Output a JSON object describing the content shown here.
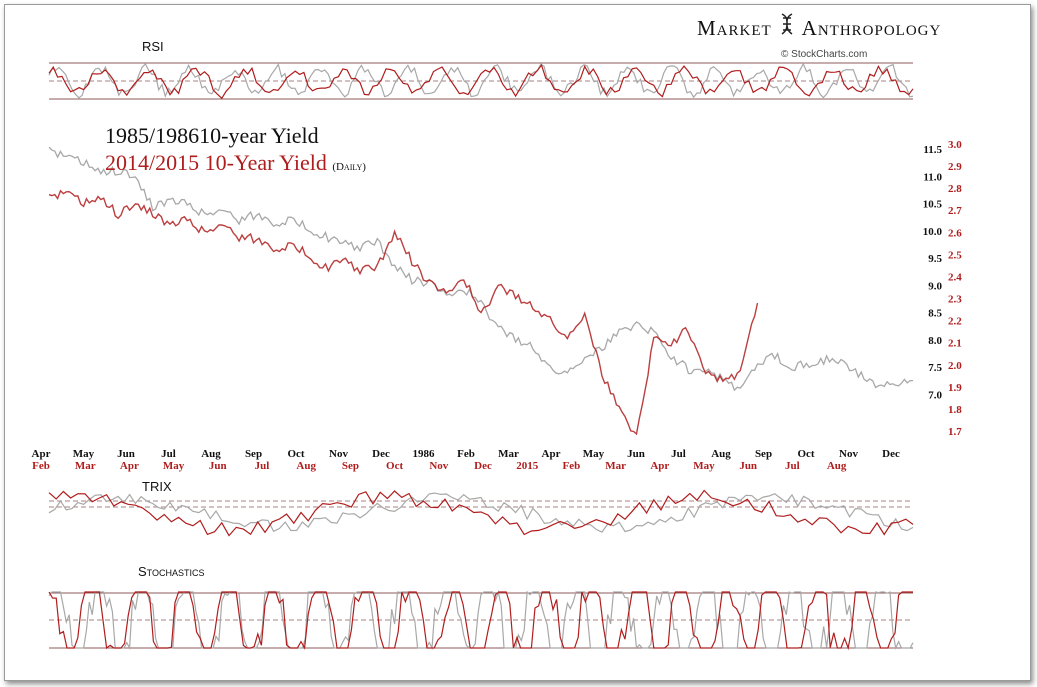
{
  "header": {
    "brand_left": "Market",
    "brand_right": "Anthropology",
    "credit": "© StockCharts.com"
  },
  "titles": {
    "series_1985": "1985/198610-year Yield",
    "series_2014_main": "2014/2015  10-Year Yield",
    "series_2014_note": "(Daily)"
  },
  "panels": {
    "rsi": "RSI",
    "trix": "TRIX",
    "stochastics": "Stochastics"
  },
  "colors": {
    "red": "#b01d1d",
    "gray": "#a8a8a8",
    "line": "#8c5a5a"
  },
  "chart_data": {
    "type": "line",
    "title": "",
    "axes": {
      "left_axis_1985": [
        11.5,
        11.0,
        10.5,
        10.0,
        9.5,
        9.0,
        8.5,
        8.0,
        7.5,
        7.0
      ],
      "right_axis_2014": [
        3.0,
        2.9,
        2.8,
        2.7,
        2.6,
        2.5,
        2.4,
        2.3,
        2.2,
        2.1,
        2.0,
        1.9,
        1.8,
        1.7
      ]
    },
    "x_labels_1985": [
      "Apr",
      "May",
      "Jun",
      "Jul",
      "Aug",
      "Sep",
      "Oct",
      "Nov",
      "Dec",
      "1986",
      "Feb",
      "Mar",
      "Apr",
      "May",
      "Jun",
      "Jul",
      "Aug",
      "Sep",
      "Oct",
      "Nov",
      "Dec"
    ],
    "x_labels_2014": [
      "Feb",
      "Mar",
      "Apr",
      "May",
      "Jun",
      "Jul",
      "Aug",
      "Sep",
      "Oct",
      "Nov",
      "Dec",
      "2015",
      "Feb",
      "Mar",
      "Apr",
      "May",
      "Jun",
      "Jul",
      "Aug"
    ],
    "series": [
      {
        "id": "yield_1985",
        "x": [
          0,
          0.02,
          0.04,
          0.06,
          0.08,
          0.1,
          0.12,
          0.14,
          0.16,
          0.18,
          0.2,
          0.22,
          0.24,
          0.26,
          0.28,
          0.3,
          0.32,
          0.34,
          0.36,
          0.38,
          0.4,
          0.42,
          0.44,
          0.46,
          0.48,
          0.5,
          0.52,
          0.54,
          0.56,
          0.58,
          0.6,
          0.62,
          0.64,
          0.66,
          0.68,
          0.7,
          0.72,
          0.74,
          0.76,
          0.78,
          0.8,
          0.82,
          0.84,
          0.86,
          0.88,
          0.9,
          0.92,
          0.94,
          0.96,
          0.98,
          1.0
        ],
        "values": [
          11.45,
          11.35,
          11.25,
          11.05,
          11.1,
          10.95,
          10.45,
          10.55,
          10.5,
          10.3,
          10.4,
          10.2,
          10.3,
          10.15,
          10.2,
          10.05,
          9.9,
          9.75,
          9.7,
          9.8,
          9.35,
          9.1,
          9.05,
          8.8,
          8.95,
          8.65,
          8.2,
          8.0,
          7.9,
          7.45,
          7.4,
          7.7,
          7.85,
          8.15,
          8.3,
          8.15,
          7.7,
          7.45,
          7.5,
          7.25,
          7.1,
          7.55,
          7.7,
          7.5,
          7.55,
          7.65,
          7.55,
          7.35,
          7.15,
          7.15,
          7.25
        ]
      },
      {
        "id": "yield_2014",
        "x": [
          0,
          0.02,
          0.04,
          0.06,
          0.08,
          0.1,
          0.12,
          0.14,
          0.16,
          0.18,
          0.2,
          0.22,
          0.24,
          0.26,
          0.28,
          0.3,
          0.32,
          0.34,
          0.36,
          0.38,
          0.4,
          0.42,
          0.44,
          0.46,
          0.48,
          0.5,
          0.52,
          0.54,
          0.56,
          0.58,
          0.6,
          0.62,
          0.64,
          0.66,
          0.68,
          0.7,
          0.72,
          0.74,
          0.76,
          0.78,
          0.8,
          0.82
        ],
        "values": [
          2.75,
          2.78,
          2.73,
          2.75,
          2.68,
          2.72,
          2.69,
          2.63,
          2.66,
          2.6,
          2.64,
          2.58,
          2.57,
          2.53,
          2.54,
          2.5,
          2.44,
          2.47,
          2.43,
          2.44,
          2.6,
          2.47,
          2.37,
          2.32,
          2.4,
          2.22,
          2.35,
          2.31,
          2.27,
          2.2,
          2.12,
          2.24,
          1.96,
          1.8,
          1.68,
          2.12,
          2.1,
          2.16,
          1.98,
          1.92,
          1.97,
          2.28
        ]
      }
    ],
    "rsi_levels": [
      70,
      50,
      30
    ],
    "stochastics_levels": [
      80,
      50,
      20
    ]
  }
}
